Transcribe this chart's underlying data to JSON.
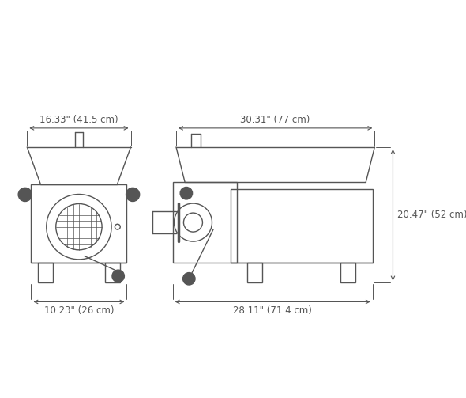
{
  "bg_color": "#ffffff",
  "line_color": "#555555",
  "dim_color": "#555555",
  "font_size_dim": 8.5,
  "front_view": {
    "label_top": "16.33\" (41.5 cm)",
    "label_bottom": "10.23\" (26 cm)"
  },
  "side_view": {
    "label_top": "30.31\" (77 cm)",
    "label_bottom": "28.11\" (71.4 cm)",
    "label_right": "20.47\" (52 cm)"
  }
}
